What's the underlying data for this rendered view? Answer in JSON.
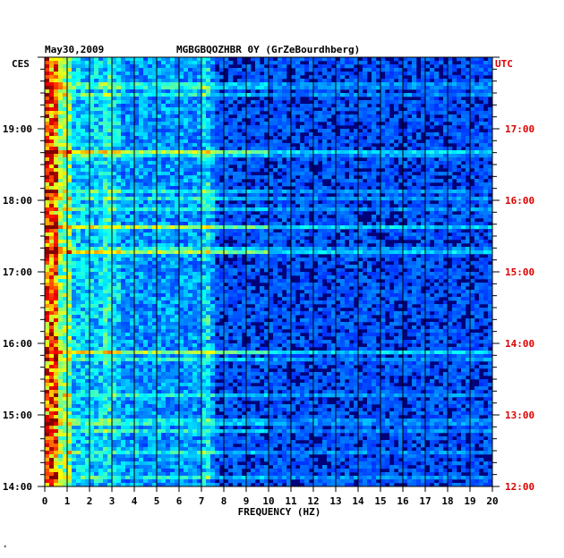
{
  "header": {
    "date": "May30,2009",
    "station": "MGBGBQOZHBR 0Y (GrZeBourdhberg)"
  },
  "left_tz": "CES",
  "right_tz": "UTC",
  "left_time_labels": [
    "14:00",
    "15:00",
    "16:00",
    "17:00",
    "18:00",
    "19:00"
  ],
  "right_time_labels": [
    "12:00",
    "13:00",
    "14:00",
    "15:00",
    "16:00",
    "17:00"
  ],
  "colors": {
    "utc_label": "#dd0000",
    "background": "#00007a",
    "grid": "#000000"
  },
  "chart_data": {
    "type": "heatmap",
    "xlabel": "FREQUENCY (HZ)",
    "xlim": [
      0,
      20
    ],
    "x_ticks": [
      "0",
      "1",
      "2",
      "3",
      "4",
      "5",
      "6",
      "7",
      "8",
      "9",
      "10",
      "11",
      "12",
      "13",
      "14",
      "15",
      "16",
      "17",
      "18",
      "19",
      "20"
    ],
    "y_left_axis": "CES",
    "y_right_axis": "UTC",
    "y_left_range": [
      "14:00",
      "20:00"
    ],
    "y_right_range": [
      "12:00",
      "18:00"
    ],
    "grid": true,
    "colormap": "jet"
  }
}
